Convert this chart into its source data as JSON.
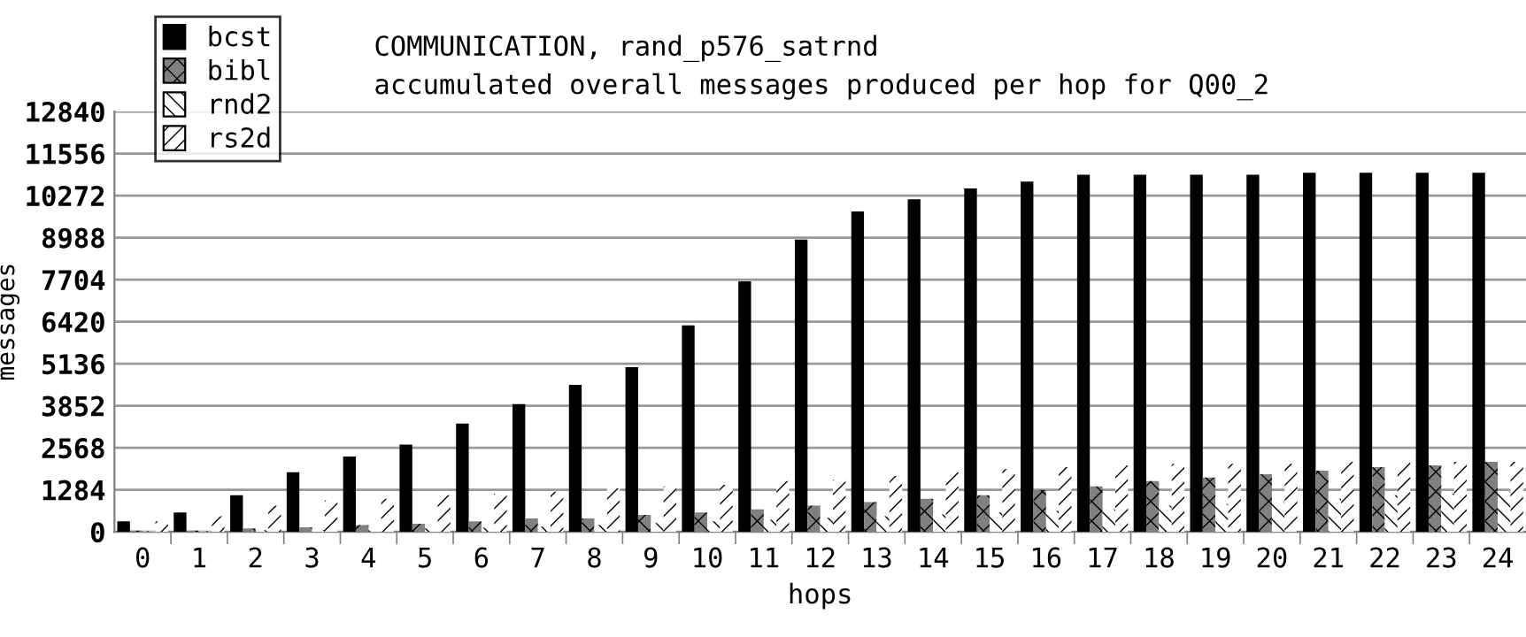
{
  "chart_data": {
    "type": "bar",
    "title": "COMMUNICATION, rand_p576_satrnd",
    "subtitle": "accumulated overall messages produced per hop for Q00_2",
    "xlabel": "hops",
    "ylabel": "messages",
    "categories": [
      "0",
      "1",
      "2",
      "3",
      "4",
      "5",
      "6",
      "7",
      "8",
      "9",
      "10",
      "11",
      "12",
      "13",
      "14",
      "15",
      "16",
      "17",
      "18",
      "19",
      "20",
      "21",
      "22",
      "23",
      "24"
    ],
    "series": [
      {
        "name": "bcst",
        "color": "#000000",
        "values": [
          320,
          590,
          1120,
          1820,
          2300,
          2670,
          3310,
          3900,
          4490,
          5030,
          6310,
          7650,
          8930,
          9790,
          10160,
          10490,
          10700,
          10910,
          10910,
          10910,
          10910,
          10970,
          10970,
          10970,
          10970
        ]
      },
      {
        "name": "bibl",
        "color": "#808080",
        "values": [
          40,
          40,
          110,
          140,
          210,
          250,
          320,
          410,
          410,
          520,
          590,
          690,
          800,
          910,
          1010,
          1120,
          1280,
          1390,
          1550,
          1660,
          1760,
          1870,
          1980,
          2030,
          2140
        ]
      },
      {
        "name": "rnd2",
        "color": "#ffffff",
        "values": [
          20,
          20,
          50,
          60,
          70,
          110,
          130,
          160,
          210,
          270,
          320,
          370,
          430,
          480,
          530,
          590,
          640,
          690,
          800,
          850,
          910,
          1010,
          1120,
          1170,
          1230
        ]
      },
      {
        "name": "rs2d",
        "color": "#ffffff",
        "values": [
          320,
          480,
          800,
          960,
          1010,
          1120,
          1170,
          1230,
          1330,
          1390,
          1440,
          1550,
          1600,
          1710,
          1820,
          1920,
          1980,
          2030,
          2080,
          2080,
          2080,
          2140,
          2140,
          2140,
          2140
        ]
      }
    ],
    "ylim": [
      0,
      12840
    ],
    "yticks": [
      0,
      1284,
      2568,
      3852,
      5136,
      6420,
      7704,
      8988,
      10272,
      11556,
      12840
    ],
    "grid": "y",
    "legend": "top left"
  }
}
